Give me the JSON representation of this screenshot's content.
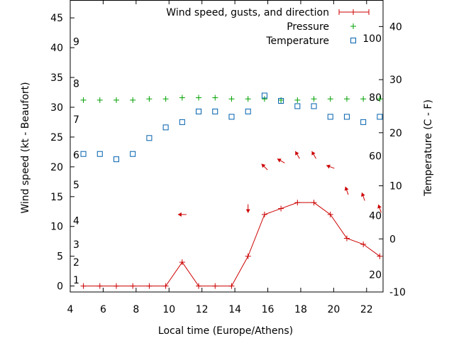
{
  "chart_data": {
    "type": "line",
    "xlabel": "Local time (Europe/Athens)",
    "ylabel_left": "Wind speed (kt - Beaufort)",
    "ylabel_right": "Temperature (C - F)",
    "xlim": [
      4,
      23
    ],
    "ylim_left": [
      -1,
      48
    ],
    "ylim_right": [
      -10,
      45
    ],
    "x_ticks": [
      4,
      6,
      8,
      10,
      12,
      14,
      16,
      18,
      20,
      22
    ],
    "y_left_ticks": [
      0,
      5,
      10,
      15,
      20,
      25,
      30,
      35,
      40,
      45
    ],
    "y_right_ticks": [
      -10,
      0,
      10,
      20,
      30,
      40
    ],
    "beaufort_labels": [
      {
        "label": "1",
        "y": 1
      },
      {
        "label": "2",
        "y": 4
      },
      {
        "label": "3",
        "y": 7
      },
      {
        "label": "4",
        "y": 11
      },
      {
        "label": "5",
        "y": 17
      },
      {
        "label": "6",
        "y": 22
      },
      {
        "label": "7",
        "y": 28
      },
      {
        "label": "8",
        "y": 34
      },
      {
        "label": "9",
        "y": 41
      }
    ],
    "fahrenheit_labels": [
      {
        "label": "20",
        "c": -6.7
      },
      {
        "label": "40",
        "c": 4.4
      },
      {
        "label": "60",
        "c": 15.6
      },
      {
        "label": "80",
        "c": 26.7
      },
      {
        "label": "100",
        "c": 37.8
      }
    ],
    "legend": {
      "position": "top-right",
      "entries": [
        "Wind speed, gusts, and direction",
        "Pressure",
        "Temperature"
      ]
    },
    "series": [
      {
        "name": "Wind speed, gusts, and direction",
        "axis": "left",
        "color": "#cc0000",
        "style": "line-plus",
        "x": [
          4.8,
          5.8,
          6.8,
          7.8,
          8.8,
          9.8,
          10.8,
          11.8,
          12.8,
          13.8,
          14.8,
          15.8,
          16.8,
          17.8,
          18.8,
          19.8,
          20.8,
          21.8,
          22.8
        ],
        "y": [
          0,
          0,
          0,
          0,
          0,
          0,
          4,
          0,
          0,
          0,
          5,
          12,
          13,
          14,
          14,
          12,
          8,
          7,
          5
        ],
        "direction_deg": [
          null,
          null,
          null,
          null,
          null,
          null,
          270,
          null,
          null,
          null,
          180,
          315,
          300,
          330,
          330,
          290,
          340,
          340,
          340
        ]
      },
      {
        "name": "Pressure",
        "axis": "left",
        "color": "#00a000",
        "style": "plus",
        "x": [
          4.8,
          5.8,
          6.8,
          7.8,
          8.8,
          9.8,
          10.8,
          11.8,
          12.8,
          13.8,
          14.8,
          15.8,
          16.8,
          17.8,
          18.8,
          19.8,
          20.8,
          21.8,
          22.8
        ],
        "y": [
          31.2,
          31.2,
          31.2,
          31.2,
          31.4,
          31.4,
          31.6,
          31.6,
          31.6,
          31.4,
          31.4,
          31.4,
          31.2,
          31.2,
          31.4,
          31.4,
          31.4,
          31.4,
          31.4
        ]
      },
      {
        "name": "Temperature",
        "axis": "right",
        "color": "#0060ad",
        "style": "open-square",
        "x": [
          4.8,
          5.8,
          6.8,
          7.8,
          8.8,
          9.8,
          10.8,
          11.8,
          12.8,
          13.8,
          14.8,
          15.8,
          16.8,
          17.8,
          18.8,
          19.8,
          20.8,
          21.8,
          22.8
        ],
        "y": [
          16,
          16,
          15,
          16,
          19,
          21,
          22,
          24,
          24,
          23,
          24,
          27,
          26,
          25,
          25,
          23,
          23,
          22,
          23
        ]
      }
    ]
  }
}
